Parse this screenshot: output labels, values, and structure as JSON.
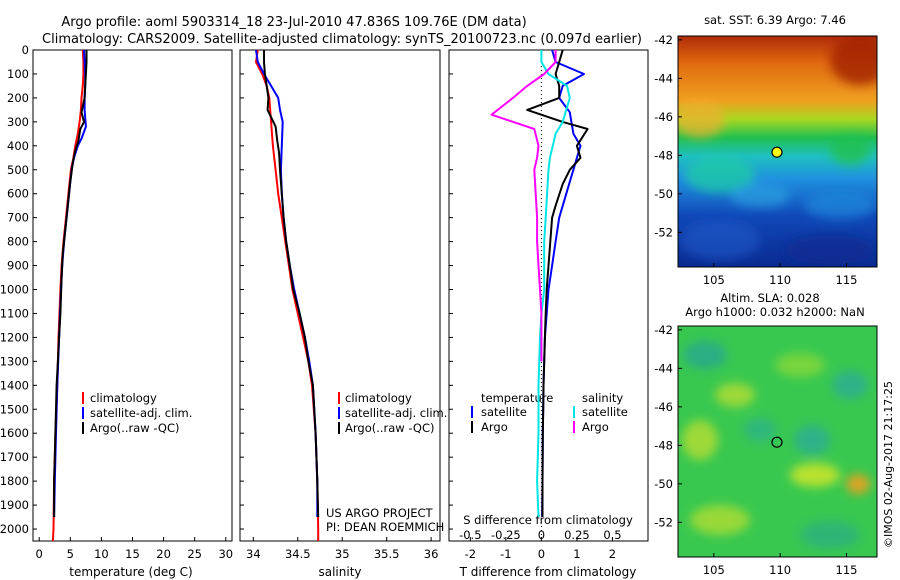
{
  "title_line1": "Argo profile: aoml 5903314_18 23-Jul-2010 47.836S 109.76E (DM data)",
  "title_line2": "Climatology: CARS2009. Satellite-adjusted climatology: synTS_20100723.nc (0.097d earlier)",
  "project_line1": "US ARGO PROJECT",
  "project_line2": "PI: DEAN ROEMMICH",
  "stamp": "©IMOS 02-Aug-2017 21:17:25",
  "colors": {
    "climatology": "#ff0000",
    "satellite": "#0000ff",
    "argo": "#000000",
    "s_satellite": "#00e5e5",
    "s_argo": "#ff00ff"
  },
  "chart_data": [
    {
      "type": "line",
      "panel": "temperature",
      "xlabel": "temperature (deg C)",
      "ylim": [
        2050,
        0
      ],
      "xlim": [
        -1,
        31
      ],
      "xticks": [
        0,
        5,
        10,
        15,
        20,
        25,
        30
      ],
      "yticks": [
        0,
        100,
        200,
        300,
        400,
        500,
        600,
        700,
        800,
        900,
        1000,
        1100,
        1200,
        1300,
        1400,
        1500,
        1600,
        1700,
        1800,
        1900,
        2000
      ],
      "legend": [
        "climatology",
        "satellite-adj. clim.",
        "Argo(..raw -QC)"
      ],
      "series": [
        {
          "name": "climatology",
          "color": "red",
          "points": [
            [
              7.0,
              0
            ],
            [
              7.1,
              50
            ],
            [
              7.1,
              100
            ],
            [
              7.0,
              150
            ],
            [
              6.8,
              200
            ],
            [
              6.7,
              250
            ],
            [
              6.5,
              300
            ],
            [
              6.2,
              350
            ],
            [
              5.8,
              400
            ],
            [
              5.5,
              450
            ],
            [
              5.1,
              500
            ],
            [
              4.7,
              600
            ],
            [
              4.3,
              700
            ],
            [
              3.9,
              800
            ],
            [
              3.6,
              900
            ],
            [
              3.4,
              1000
            ],
            [
              3.1,
              1200
            ],
            [
              2.9,
              1400
            ],
            [
              2.6,
              1600
            ],
            [
              2.4,
              1800
            ],
            [
              2.3,
              2000
            ],
            [
              2.2,
              2050
            ]
          ]
        },
        {
          "name": "satellite-adj. clim.",
          "color": "blue",
          "points": [
            [
              7.2,
              0
            ],
            [
              7.3,
              50
            ],
            [
              7.4,
              100
            ],
            [
              7.4,
              150
            ],
            [
              7.3,
              200
            ],
            [
              7.3,
              250
            ],
            [
              7.5,
              320
            ],
            [
              6.8,
              370
            ],
            [
              6.2,
              400
            ],
            [
              5.6,
              450
            ],
            [
              5.2,
              500
            ],
            [
              4.8,
              600
            ],
            [
              4.4,
              700
            ],
            [
              4.0,
              800
            ],
            [
              3.7,
              900
            ],
            [
              3.5,
              1000
            ],
            [
              3.2,
              1200
            ],
            [
              2.9,
              1400
            ],
            [
              2.7,
              1600
            ],
            [
              2.5,
              1800
            ],
            [
              2.4,
              1950
            ]
          ]
        },
        {
          "name": "Argo(..raw -QC)",
          "color": "black",
          "points": [
            [
              7.6,
              0
            ],
            [
              7.6,
              50
            ],
            [
              7.5,
              100
            ],
            [
              7.4,
              150
            ],
            [
              7.3,
              200
            ],
            [
              6.8,
              260
            ],
            [
              7.2,
              300
            ],
            [
              6.6,
              330
            ],
            [
              6.3,
              380
            ],
            [
              5.8,
              420
            ],
            [
              5.4,
              470
            ],
            [
              5.0,
              550
            ],
            [
              4.6,
              650
            ],
            [
              4.2,
              750
            ],
            [
              3.8,
              850
            ],
            [
              3.6,
              950
            ],
            [
              3.4,
              1100
            ],
            [
              3.2,
              1200
            ],
            [
              3.0,
              1300
            ],
            [
              2.8,
              1400
            ],
            [
              2.6,
              1600
            ],
            [
              2.5,
              1700
            ],
            [
              2.4,
              1800
            ],
            [
              2.4,
              1950
            ]
          ]
        }
      ]
    },
    {
      "type": "line",
      "panel": "salinity",
      "xlabel": "salinity",
      "ylim": [
        2050,
        0
      ],
      "xlim": [
        33.85,
        36.1
      ],
      "xticks": [
        34,
        34.5,
        35,
        35.5,
        36
      ],
      "legend": [
        "climatology",
        "satellite-adj. clim.",
        "Argo(..raw -QC)"
      ],
      "series": [
        {
          "name": "climatology",
          "color": "red",
          "points": [
            [
              34.05,
              0
            ],
            [
              34.03,
              50
            ],
            [
              34.1,
              100
            ],
            [
              34.15,
              150
            ],
            [
              34.18,
              200
            ],
            [
              34.2,
              300
            ],
            [
              34.22,
              400
            ],
            [
              34.25,
              500
            ],
            [
              34.28,
              600
            ],
            [
              34.32,
              700
            ],
            [
              34.36,
              800
            ],
            [
              34.4,
              900
            ],
            [
              34.44,
              1000
            ],
            [
              34.5,
              1100
            ],
            [
              34.56,
              1200
            ],
            [
              34.62,
              1300
            ],
            [
              34.66,
              1400
            ],
            [
              34.7,
              1600
            ],
            [
              34.72,
              1800
            ],
            [
              34.73,
              2000
            ],
            [
              34.73,
              2050
            ]
          ]
        },
        {
          "name": "satellite-adj. clim.",
          "color": "blue",
          "points": [
            [
              34.03,
              0
            ],
            [
              34.05,
              50
            ],
            [
              34.12,
              100
            ],
            [
              34.2,
              150
            ],
            [
              34.28,
              200
            ],
            [
              34.3,
              250
            ],
            [
              34.33,
              300
            ],
            [
              34.32,
              400
            ],
            [
              34.31,
              500
            ],
            [
              34.32,
              600
            ],
            [
              34.34,
              700
            ],
            [
              34.37,
              800
            ],
            [
              34.41,
              900
            ],
            [
              34.46,
              1000
            ],
            [
              34.52,
              1100
            ],
            [
              34.58,
              1200
            ],
            [
              34.63,
              1300
            ],
            [
              34.67,
              1400
            ],
            [
              34.7,
              1600
            ],
            [
              34.72,
              1800
            ],
            [
              34.72,
              1950
            ]
          ]
        },
        {
          "name": "Argo(..raw -QC)",
          "color": "black",
          "points": [
            [
              34.12,
              0
            ],
            [
              34.12,
              50
            ],
            [
              34.13,
              100
            ],
            [
              34.15,
              150
            ],
            [
              34.17,
              200
            ],
            [
              34.16,
              250
            ],
            [
              34.25,
              320
            ],
            [
              34.27,
              380
            ],
            [
              34.29,
              430
            ],
            [
              34.3,
              500
            ],
            [
              34.32,
              600
            ],
            [
              34.34,
              700
            ],
            [
              34.37,
              800
            ],
            [
              34.41,
              900
            ],
            [
              34.45,
              1000
            ],
            [
              34.52,
              1100
            ],
            [
              34.58,
              1200
            ],
            [
              34.62,
              1300
            ],
            [
              34.67,
              1400
            ],
            [
              34.7,
              1600
            ],
            [
              34.72,
              1800
            ],
            [
              34.73,
              1950
            ]
          ]
        }
      ]
    },
    {
      "type": "line",
      "panel": "difference",
      "xlabel": "T difference from climatology",
      "top_axis_label": "S difference from climatology",
      "ylim": [
        2050,
        0
      ],
      "xlim": [
        -2.6,
        3.0
      ],
      "xticks_T": [
        -2,
        -1,
        0,
        1,
        2
      ],
      "xticks_S": [
        -0.5,
        -0.25,
        0,
        0.25,
        0.5
      ],
      "legend_temperature": {
        "heading": "temperature",
        "items": [
          "satellite",
          "Argo"
        ]
      },
      "legend_salinity": {
        "heading": "salinity",
        "items": [
          "satellite",
          "Argo"
        ]
      },
      "series": [
        {
          "name": "T satellite",
          "color": "blue",
          "points": [
            [
              0.3,
              0
            ],
            [
              0.4,
              50
            ],
            [
              1.2,
              100
            ],
            [
              0.6,
              150
            ],
            [
              0.5,
              200
            ],
            [
              0.8,
              260
            ],
            [
              0.9,
              350
            ],
            [
              1.1,
              400
            ],
            [
              1.0,
              450
            ],
            [
              0.9,
              500
            ],
            [
              0.8,
              550
            ],
            [
              0.7,
              600
            ],
            [
              0.5,
              700
            ],
            [
              0.4,
              800
            ],
            [
              0.3,
              900
            ],
            [
              0.2,
              1000
            ],
            [
              0.15,
              1100
            ],
            [
              0.1,
              1200
            ],
            [
              0.08,
              1300
            ],
            [
              0.06,
              1400
            ],
            [
              0.05,
              1500
            ],
            [
              0.04,
              1600
            ],
            [
              0.03,
              1800
            ],
            [
              0.02,
              1950
            ]
          ]
        },
        {
          "name": "T Argo",
          "color": "black",
          "points": [
            [
              0.6,
              0
            ],
            [
              0.5,
              50
            ],
            [
              0.4,
              100
            ],
            [
              0.5,
              150
            ],
            [
              0.5,
              200
            ],
            [
              -0.4,
              250
            ],
            [
              0.6,
              300
            ],
            [
              1.3,
              330
            ],
            [
              1.0,
              400
            ],
            [
              1.1,
              450
            ],
            [
              0.8,
              500
            ],
            [
              0.6,
              560
            ],
            [
              0.4,
              650
            ],
            [
              0.3,
              700
            ],
            [
              0.25,
              800
            ],
            [
              0.2,
              900
            ],
            [
              0.15,
              1000
            ],
            [
              0.12,
              1100
            ],
            [
              0.1,
              1200
            ],
            [
              0.08,
              1300
            ],
            [
              0.06,
              1400
            ],
            [
              0.05,
              1500
            ],
            [
              0.04,
              1600
            ],
            [
              0.03,
              1800
            ],
            [
              0.03,
              1950
            ]
          ]
        },
        {
          "name": "S satellite",
          "color": "cyan",
          "points": [
            [
              0.0,
              0
            ],
            [
              0.0,
              50
            ],
            [
              0.05,
              100
            ],
            [
              0.18,
              150
            ],
            [
              0.2,
              200
            ],
            [
              0.15,
              300
            ],
            [
              0.1,
              350
            ],
            [
              0.08,
              400
            ],
            [
              0.06,
              450
            ],
            [
              0.05,
              500
            ],
            [
              0.04,
              600
            ],
            [
              0.03,
              700
            ],
            [
              0.02,
              800
            ],
            [
              0.02,
              900
            ],
            [
              0.02,
              1000
            ],
            [
              0.0,
              1100
            ],
            [
              -0.01,
              1200
            ],
            [
              -0.02,
              1400
            ],
            [
              -0.02,
              1600
            ],
            [
              -0.03,
              1800
            ],
            [
              -0.02,
              1950
            ]
          ]
        },
        {
          "name": "S Argo",
          "color": "magenta",
          "points": [
            [
              0.1,
              0
            ],
            [
              0.1,
              50
            ],
            [
              0.02,
              100
            ],
            [
              -0.1,
              150
            ],
            [
              -0.2,
              200
            ],
            [
              -0.35,
              270
            ],
            [
              -0.05,
              330
            ],
            [
              -0.02,
              400
            ],
            [
              -0.03,
              450
            ],
            [
              -0.05,
              500
            ],
            [
              -0.04,
              600
            ],
            [
              -0.03,
              700
            ],
            [
              -0.03,
              800
            ],
            [
              -0.02,
              900
            ],
            [
              -0.01,
              1000
            ],
            [
              0.0,
              1100
            ],
            [
              0.0,
              1200
            ],
            [
              0.0,
              1300
            ]
          ]
        }
      ]
    },
    {
      "type": "heatmap",
      "panel": "sst_map",
      "title": "sat. SST: 6.39 Argo: 7.46",
      "xticks": [
        105,
        110,
        115
      ],
      "yticks": [
        -42,
        -44,
        -46,
        -48,
        -50,
        -52
      ],
      "xlim": [
        102.3,
        117.3
      ],
      "ylim": [
        -53.8,
        -41.8
      ],
      "marker": {
        "lon": 109.76,
        "lat": -47.836
      }
    },
    {
      "type": "heatmap",
      "panel": "sla_map",
      "title_line1": "Altim. SLA: 0.028",
      "title_line2": "Argo h1000: 0.032 h2000: NaN",
      "xticks": [
        105,
        110,
        115
      ],
      "yticks": [
        -42,
        -44,
        -46,
        -48,
        -50,
        -52
      ],
      "xlim": [
        102.3,
        117.3
      ],
      "ylim": [
        -53.8,
        -41.8
      ],
      "marker": {
        "lon": 109.76,
        "lat": -47.836
      }
    }
  ]
}
